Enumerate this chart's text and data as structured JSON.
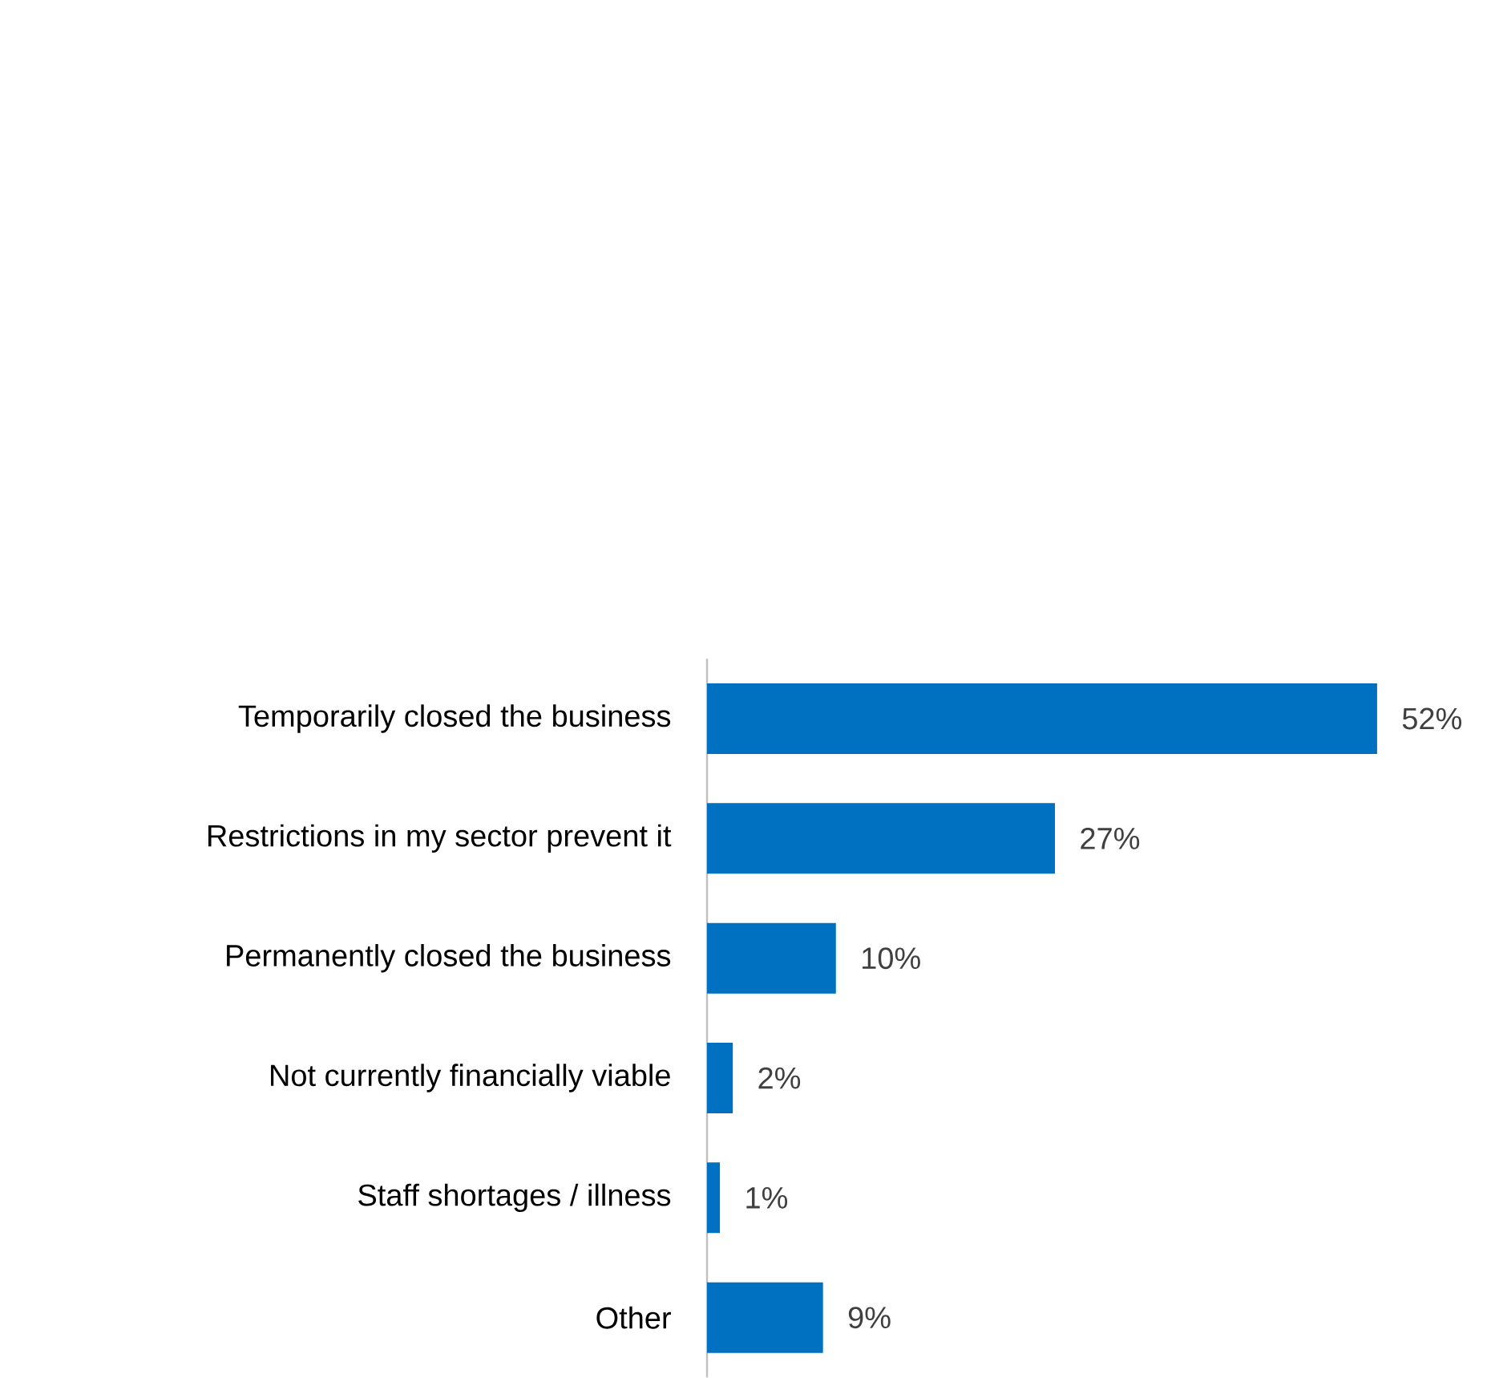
{
  "chart_data": {
    "type": "bar",
    "orientation": "horizontal",
    "categories": [
      "Temporarily closed the business",
      "Restrictions in my sector prevent it",
      "Permanently closed the business",
      "Not currently financially viable",
      "Staff shortages / illness",
      "Other"
    ],
    "values": [
      52,
      27,
      10,
      2,
      1,
      9
    ],
    "value_labels": [
      "52%",
      "27%",
      "10%",
      "2%",
      "1%",
      "9%"
    ],
    "color": "#0070c0"
  }
}
